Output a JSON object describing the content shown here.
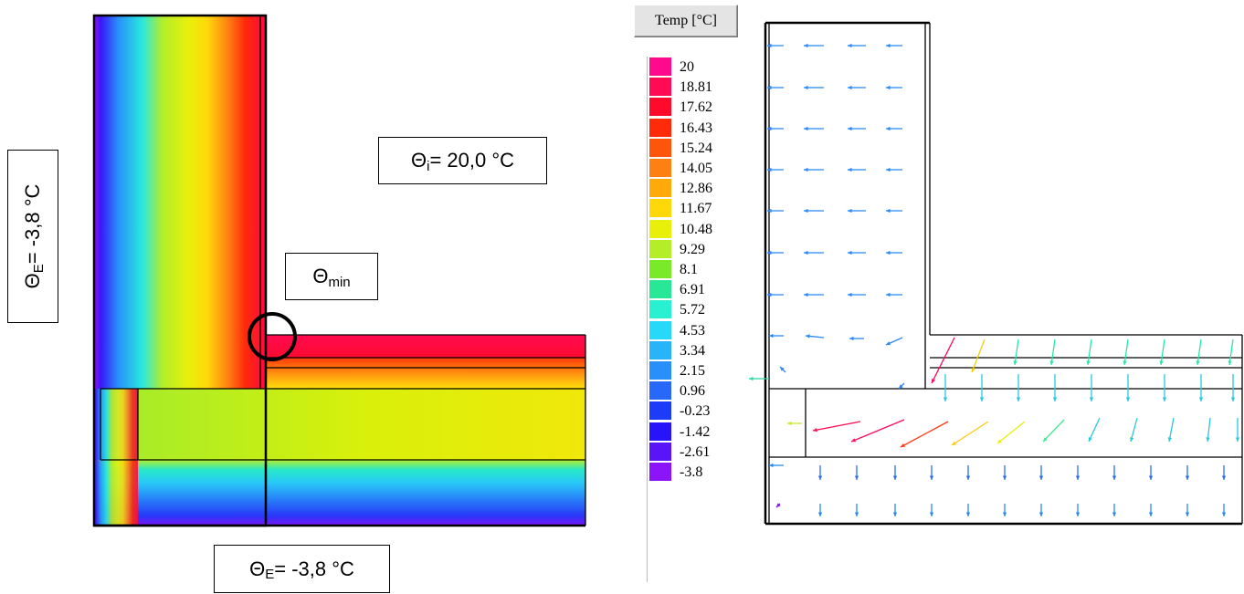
{
  "labels": {
    "theta_i": {
      "symbol": "Θ",
      "sub": "i",
      "rest": " = 20,0 °C"
    },
    "theta_min": {
      "symbol": "Θ",
      "sub": "min"
    },
    "theta_e_bottom": {
      "symbol": "Θ",
      "sub": "E",
      "rest": " = -3,8 °C"
    },
    "theta_e_left": {
      "symbol": "Θ",
      "sub": "E",
      "rest": " = -3,8 °C"
    }
  },
  "legend": {
    "title": "Temp [°C]",
    "entries": [
      {
        "value": "20",
        "color": "#ff0a8c"
      },
      {
        "value": "18.81",
        "color": "#ff0a55"
      },
      {
        "value": "17.62",
        "color": "#ff0a2a"
      },
      {
        "value": "16.43",
        "color": "#ff2a0a"
      },
      {
        "value": "15.24",
        "color": "#ff550a"
      },
      {
        "value": "14.05",
        "color": "#ff8012"
      },
      {
        "value": "12.86",
        "color": "#ffaa0a"
      },
      {
        "value": "11.67",
        "color": "#ffd80a"
      },
      {
        "value": "10.48",
        "color": "#e8f00a"
      },
      {
        "value": "9.29",
        "color": "#b4ee28"
      },
      {
        "value": "8.1",
        "color": "#78ea28"
      },
      {
        "value": "6.91",
        "color": "#28e898"
      },
      {
        "value": "5.72",
        "color": "#28f0d0"
      },
      {
        "value": "4.53",
        "color": "#28d8f8"
      },
      {
        "value": "3.34",
        "color": "#28b4f8"
      },
      {
        "value": "2.15",
        "color": "#2890f8"
      },
      {
        "value": "0.96",
        "color": "#2868f8"
      },
      {
        "value": "-0.23",
        "color": "#1c3cf8"
      },
      {
        "value": "-1.42",
        "color": "#2814f8"
      },
      {
        "value": "-2.61",
        "color": "#5a14f8"
      },
      {
        "value": "-3.8",
        "color": "#8c14f8"
      }
    ]
  }
}
